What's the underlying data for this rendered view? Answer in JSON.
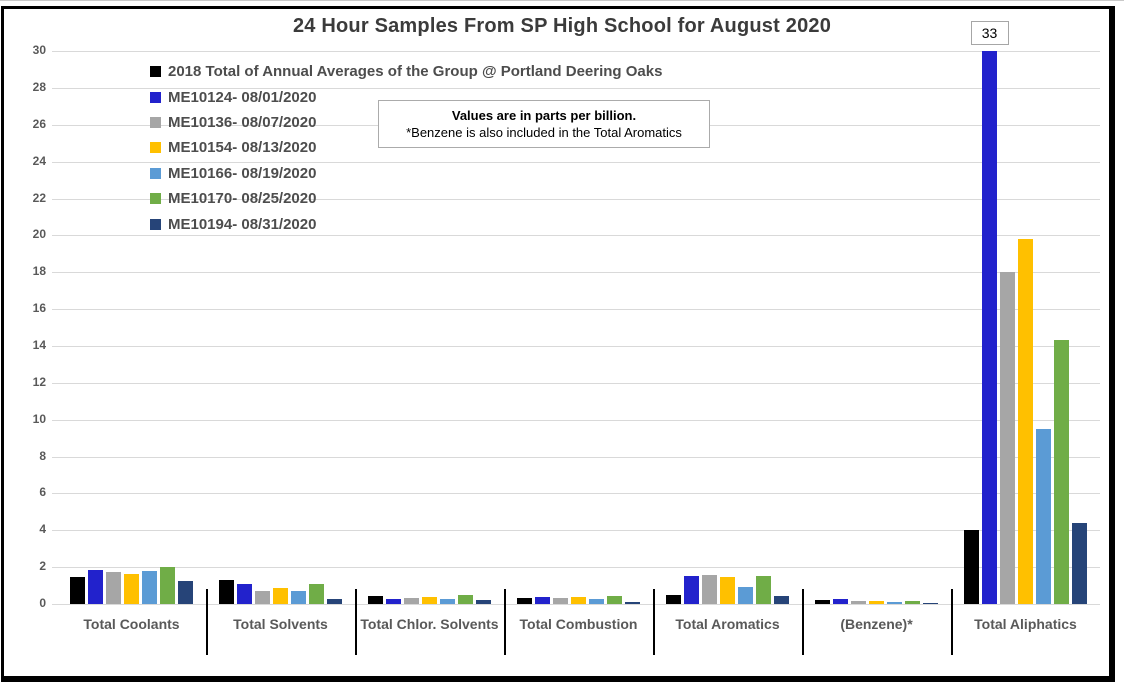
{
  "chart_data": {
    "type": "bar",
    "title": "24 Hour Samples From SP High School for August 2020",
    "xlabel": "",
    "ylabel": "",
    "ylim": [
      0,
      30
    ],
    "ytick_step": 2,
    "grid": true,
    "legend_position": "top-left",
    "categories": [
      "Total Coolants",
      "Total Solvents",
      "Total Chlor. Solvents",
      "Total Combustion",
      "Total Aromatics",
      "(Benzene)*",
      "Total Aliphatics"
    ],
    "series": [
      {
        "name": "2018 Total of Annual Averages of the Group @ Portland Deering Oaks",
        "color": "#000000",
        "values": [
          1.45,
          1.3,
          0.45,
          0.35,
          0.5,
          0.2,
          4.0
        ]
      },
      {
        "name": "ME10124- 08/01/2020",
        "color": "#2222cc",
        "values": [
          1.85,
          1.1,
          0.3,
          0.4,
          1.5,
          0.25,
          33
        ]
      },
      {
        "name": "ME10136- 08/07/2020",
        "color": "#a6a6a6",
        "values": [
          1.75,
          0.7,
          0.35,
          0.35,
          1.6,
          0.15,
          18
        ]
      },
      {
        "name": "ME10154- 08/13/2020",
        "color": "#ffc000",
        "values": [
          1.65,
          0.85,
          0.4,
          0.4,
          1.45,
          0.17,
          19.8
        ]
      },
      {
        "name": "ME10166- 08/19/2020",
        "color": "#5b9bd5",
        "values": [
          1.8,
          0.7,
          0.3,
          0.25,
          0.95,
          0.12,
          9.5
        ]
      },
      {
        "name": "ME10170- 08/25/2020",
        "color": "#70ad47",
        "values": [
          2.0,
          1.1,
          0.5,
          0.45,
          1.5,
          0.17,
          14.3
        ]
      },
      {
        "name": "ME10194- 08/31/2020",
        "color": "#264478",
        "values": [
          1.25,
          0.25,
          0.2,
          0.1,
          0.45,
          0.02,
          4.4
        ]
      }
    ],
    "clip_max": 30,
    "data_labels": [
      {
        "text": "33",
        "series_index": 1,
        "category_index": 6
      }
    ]
  },
  "annotation": {
    "line1": "Values are in parts per billion.",
    "line2": "*Benzene is also included in the Total Aromatics"
  }
}
